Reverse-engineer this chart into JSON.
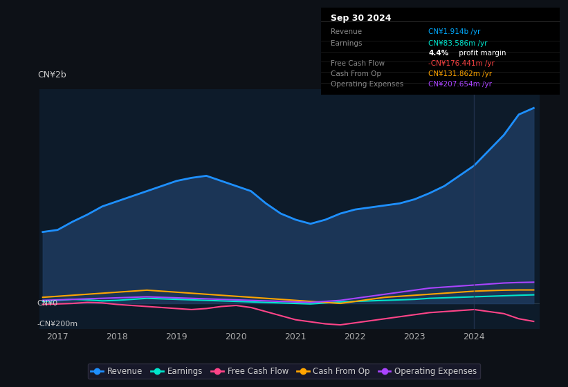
{
  "background_color": "#0d1117",
  "plot_bg_color": "#0d1b2a",
  "ylabel_top": "CN¥2b",
  "ylabel_zero": "CN¥0",
  "ylabel_neg": "-CN¥200m",
  "ylim": [
    -250,
    2100
  ],
  "series": {
    "Revenue": {
      "color": "#1e90ff",
      "fill_color": "#1e3a5f",
      "linewidth": 2.0,
      "x": [
        2016.75,
        2017.0,
        2017.25,
        2017.5,
        2017.75,
        2018.0,
        2018.25,
        2018.5,
        2018.75,
        2019.0,
        2019.25,
        2019.5,
        2019.75,
        2020.0,
        2020.25,
        2020.5,
        2020.75,
        2021.0,
        2021.25,
        2021.5,
        2021.75,
        2022.0,
        2022.25,
        2022.5,
        2022.75,
        2023.0,
        2023.25,
        2023.5,
        2023.75,
        2024.0,
        2024.25,
        2024.5,
        2024.75,
        2025.0
      ],
      "y": [
        700,
        720,
        800,
        870,
        950,
        1000,
        1050,
        1100,
        1150,
        1200,
        1230,
        1250,
        1200,
        1150,
        1100,
        980,
        880,
        820,
        780,
        820,
        880,
        920,
        940,
        960,
        980,
        1020,
        1080,
        1150,
        1250,
        1350,
        1500,
        1650,
        1850,
        1914
      ]
    },
    "Earnings": {
      "color": "#00e5cc",
      "linewidth": 1.5,
      "x": [
        2016.75,
        2017.0,
        2017.25,
        2017.5,
        2017.75,
        2018.0,
        2018.25,
        2018.5,
        2018.75,
        2019.0,
        2019.25,
        2019.5,
        2019.75,
        2020.0,
        2020.25,
        2020.5,
        2020.75,
        2021.0,
        2021.25,
        2021.5,
        2021.75,
        2022.0,
        2022.25,
        2022.5,
        2022.75,
        2023.0,
        2023.25,
        2023.5,
        2023.75,
        2024.0,
        2024.25,
        2024.5,
        2024.75,
        2025.0
      ],
      "y": [
        20,
        30,
        40,
        35,
        25,
        30,
        40,
        50,
        45,
        40,
        35,
        30,
        25,
        20,
        15,
        10,
        5,
        0,
        -5,
        5,
        15,
        20,
        25,
        30,
        35,
        40,
        50,
        55,
        60,
        65,
        70,
        75,
        80,
        84
      ]
    },
    "Free Cash Flow": {
      "color": "#ff4488",
      "linewidth": 1.5,
      "x": [
        2016.75,
        2017.0,
        2017.25,
        2017.5,
        2017.75,
        2018.0,
        2018.25,
        2018.5,
        2018.75,
        2019.0,
        2019.25,
        2019.5,
        2019.75,
        2020.0,
        2020.25,
        2020.5,
        2020.75,
        2021.0,
        2021.25,
        2021.5,
        2021.75,
        2022.0,
        2022.25,
        2022.5,
        2022.75,
        2023.0,
        2023.25,
        2023.5,
        2023.75,
        2024.0,
        2024.25,
        2024.5,
        2024.75,
        2025.0
      ],
      "y": [
        -10,
        -5,
        0,
        10,
        5,
        -10,
        -20,
        -30,
        -40,
        -50,
        -60,
        -50,
        -30,
        -20,
        -40,
        -80,
        -120,
        -160,
        -180,
        -200,
        -210,
        -190,
        -170,
        -150,
        -130,
        -110,
        -90,
        -80,
        -70,
        -60,
        -80,
        -100,
        -150,
        -176
      ]
    },
    "Cash From Op": {
      "color": "#ffa500",
      "linewidth": 1.5,
      "x": [
        2016.75,
        2017.0,
        2017.25,
        2017.5,
        2017.75,
        2018.0,
        2018.25,
        2018.5,
        2018.75,
        2019.0,
        2019.25,
        2019.5,
        2019.75,
        2020.0,
        2020.25,
        2020.5,
        2020.75,
        2021.0,
        2021.25,
        2021.5,
        2021.75,
        2022.0,
        2022.25,
        2022.5,
        2022.75,
        2023.0,
        2023.25,
        2023.5,
        2023.75,
        2024.0,
        2024.25,
        2024.5,
        2024.75,
        2025.0
      ],
      "y": [
        60,
        70,
        80,
        90,
        100,
        110,
        120,
        130,
        120,
        110,
        100,
        90,
        80,
        70,
        60,
        50,
        40,
        30,
        20,
        10,
        0,
        20,
        40,
        60,
        70,
        80,
        90,
        100,
        110,
        120,
        125,
        130,
        132,
        132
      ]
    },
    "Operating Expenses": {
      "color": "#aa44ff",
      "linewidth": 1.5,
      "x": [
        2016.75,
        2017.0,
        2017.25,
        2017.5,
        2017.75,
        2018.0,
        2018.25,
        2018.5,
        2018.75,
        2019.0,
        2019.25,
        2019.5,
        2019.75,
        2020.0,
        2020.25,
        2020.5,
        2020.75,
        2021.0,
        2021.25,
        2021.5,
        2021.75,
        2022.0,
        2022.25,
        2022.5,
        2022.75,
        2023.0,
        2023.25,
        2023.5,
        2023.75,
        2024.0,
        2024.25,
        2024.5,
        2024.75,
        2025.0
      ],
      "y": [
        30,
        35,
        40,
        45,
        50,
        55,
        60,
        65,
        60,
        55,
        50,
        45,
        40,
        35,
        30,
        25,
        20,
        15,
        10,
        20,
        30,
        50,
        70,
        90,
        110,
        130,
        150,
        160,
        170,
        180,
        190,
        200,
        205,
        208
      ]
    }
  },
  "xticks": [
    2017,
    2018,
    2019,
    2020,
    2021,
    2022,
    2023,
    2024
  ],
  "legend": [
    {
      "label": "Revenue",
      "color": "#1e90ff"
    },
    {
      "label": "Earnings",
      "color": "#00e5cc"
    },
    {
      "label": "Free Cash Flow",
      "color": "#ff4488"
    },
    {
      "label": "Cash From Op",
      "color": "#ffa500"
    },
    {
      "label": "Operating Expenses",
      "color": "#aa44ff"
    }
  ],
  "grid_color": "#2a3a4a",
  "tick_color": "#aaaaaa",
  "text_color": "#cccccc",
  "info_box": {
    "date": "Sep 30 2024",
    "rows": [
      {
        "label": "Revenue",
        "value": "CN¥1.914b /yr",
        "value_color": "#00aaff"
      },
      {
        "label": "Earnings",
        "value": "CN¥83.586m /yr",
        "value_color": "#00e5cc"
      },
      {
        "label": "",
        "value": "4.4% profit margin",
        "value_color": "#ffffff",
        "bold_pct": "4.4%",
        "rest": " profit margin"
      },
      {
        "label": "Free Cash Flow",
        "value": "-CN¥176.441m /yr",
        "value_color": "#ff4444"
      },
      {
        "label": "Cash From Op",
        "value": "CN¥131.862m /yr",
        "value_color": "#ffa500"
      },
      {
        "label": "Operating Expenses",
        "value": "CN¥207.654m /yr",
        "value_color": "#aa44ff"
      }
    ]
  }
}
